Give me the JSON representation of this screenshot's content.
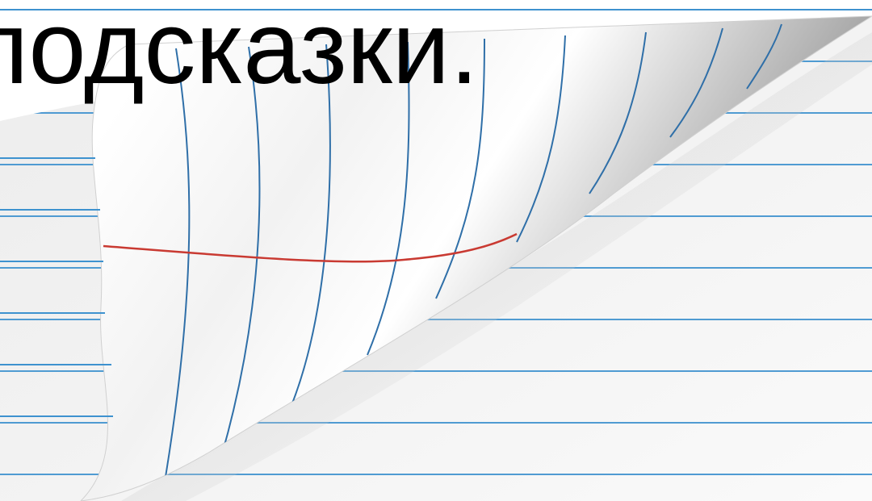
{
  "slide": {
    "caption": "подсказки."
  },
  "paper": {
    "line_color": "#3e92cf",
    "margin_line_color": "#c93a32",
    "page_color": "#ffffff",
    "shadow_color": "#7a7a7a"
  }
}
